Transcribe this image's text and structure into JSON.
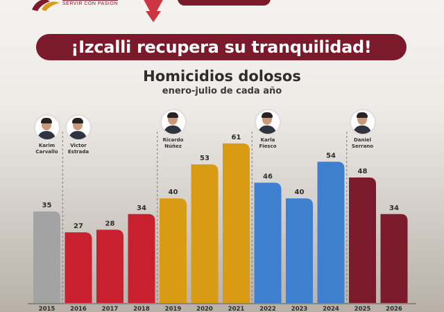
{
  "header": {
    "logo_tagline": "SERVIR CON PASIÓN",
    "banner": "¡Izcalli recupera su tranquilidad!"
  },
  "chart_data": {
    "type": "bar",
    "title": "Homicidios dolosos",
    "subtitle": "enero-julio de cada año",
    "categories": [
      "2015",
      "2016",
      "2017",
      "2018",
      "2019",
      "2020",
      "2021",
      "2022",
      "2023",
      "2024",
      "2025",
      "2026"
    ],
    "values": [
      35,
      27,
      28,
      34,
      40,
      53,
      61,
      46,
      40,
      54,
      48,
      34
    ],
    "colors": [
      "#a3a3a3",
      "#c8202f",
      "#c8202f",
      "#c8202f",
      "#d99a14",
      "#d99a14",
      "#d99a14",
      "#3f7fd0",
      "#3f7fd0",
      "#3f7fd0",
      "#7a1a2a",
      "#7a1a2a"
    ],
    "ylim": [
      0,
      70
    ]
  },
  "administrations": [
    {
      "name": "Karim\nCarvallo",
      "from": "2015"
    },
    {
      "name": "Victor\nEstrada",
      "from": "2016"
    },
    {
      "name": "Ricardo\nNúñez",
      "from": "2019"
    },
    {
      "name": "Karla\nFiesco",
      "from": "2022"
    },
    {
      "name": "Daniel\nSerrano",
      "from": "2025"
    }
  ]
}
